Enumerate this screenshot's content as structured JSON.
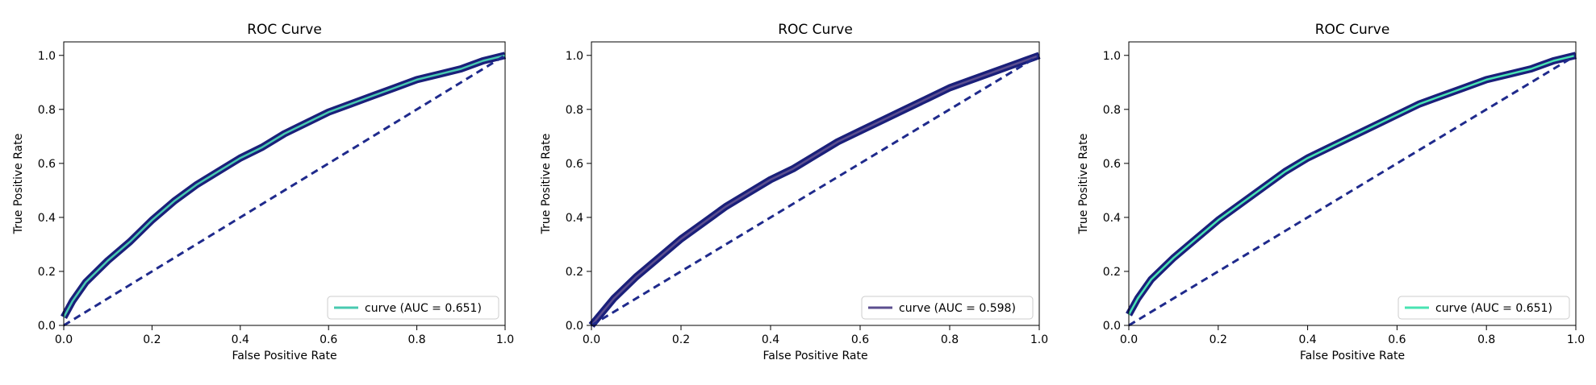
{
  "chart_data": [
    {
      "type": "line",
      "title": "ROC Curve",
      "xlabel": "False Positive Rate",
      "ylabel": "True Positive Rate",
      "xlim": [
        0,
        1
      ],
      "ylim": [
        0,
        1.05
      ],
      "xticks": [
        "0.0",
        "0.2",
        "0.4",
        "0.6",
        "0.8",
        "1.0"
      ],
      "yticks": [
        "0.0",
        "0.2",
        "0.4",
        "0.6",
        "0.8",
        "1.0"
      ],
      "grid": false,
      "legend_position": "lower-right",
      "series": [
        {
          "name": "curve (AUC = 0.651)",
          "color": "#48c9b0",
          "x": [
            0,
            0.02,
            0.05,
            0.1,
            0.15,
            0.2,
            0.25,
            0.3,
            0.35,
            0.4,
            0.45,
            0.5,
            0.55,
            0.6,
            0.65,
            0.7,
            0.75,
            0.8,
            0.85,
            0.9,
            0.95,
            1.0
          ],
          "y": [
            0.03,
            0.09,
            0.16,
            0.24,
            0.31,
            0.39,
            0.46,
            0.52,
            0.57,
            0.62,
            0.66,
            0.71,
            0.75,
            0.79,
            0.82,
            0.85,
            0.88,
            0.91,
            0.93,
            0.95,
            0.98,
            1.0
          ]
        },
        {
          "name": "",
          "color": "#1f2a8c",
          "dashed": true,
          "x": [
            0,
            1
          ],
          "y": [
            0,
            1
          ]
        }
      ]
    },
    {
      "type": "line",
      "title": "ROC Curve",
      "xlabel": "False Positive Rate",
      "ylabel": "True Positive Rate",
      "xlim": [
        0,
        1
      ],
      "ylim": [
        0,
        1.05
      ],
      "xticks": [
        "0.0",
        "0.2",
        "0.4",
        "0.6",
        "0.8",
        "1.0"
      ],
      "yticks": [
        "0.0",
        "0.2",
        "0.4",
        "0.6",
        "0.8",
        "1.0"
      ],
      "grid": false,
      "legend_position": "lower-right",
      "series": [
        {
          "name": "curve (AUC = 0.598)",
          "color": "#5b4e8f",
          "x": [
            0,
            0.02,
            0.05,
            0.1,
            0.15,
            0.2,
            0.25,
            0.3,
            0.35,
            0.4,
            0.45,
            0.5,
            0.55,
            0.6,
            0.65,
            0.7,
            0.75,
            0.8,
            0.85,
            0.9,
            0.95,
            1.0
          ],
          "y": [
            0.0,
            0.04,
            0.1,
            0.18,
            0.25,
            0.32,
            0.38,
            0.44,
            0.49,
            0.54,
            0.58,
            0.63,
            0.68,
            0.72,
            0.76,
            0.8,
            0.84,
            0.88,
            0.91,
            0.94,
            0.97,
            1.0
          ]
        },
        {
          "name": "",
          "color": "#1f2a8c",
          "dashed": true,
          "x": [
            0,
            1
          ],
          "y": [
            0,
            1
          ]
        }
      ]
    },
    {
      "type": "line",
      "title": "ROC Curve",
      "xlabel": "False Positive Rate",
      "ylabel": "True Positive Rate",
      "xlim": [
        0,
        1
      ],
      "ylim": [
        0,
        1.05
      ],
      "xticks": [
        "0.0",
        "0.2",
        "0.4",
        "0.6",
        "0.8",
        "1.0"
      ],
      "yticks": [
        "0.0",
        "0.2",
        "0.4",
        "0.6",
        "0.8",
        "1.0"
      ],
      "grid": false,
      "legend_position": "lower-right",
      "series": [
        {
          "name": "curve (AUC = 0.651)",
          "color": "#48e3b2",
          "x": [
            0,
            0.02,
            0.05,
            0.1,
            0.15,
            0.2,
            0.25,
            0.3,
            0.35,
            0.4,
            0.45,
            0.5,
            0.55,
            0.6,
            0.65,
            0.7,
            0.75,
            0.8,
            0.85,
            0.9,
            0.95,
            1.0
          ],
          "y": [
            0.04,
            0.1,
            0.17,
            0.25,
            0.32,
            0.39,
            0.45,
            0.51,
            0.57,
            0.62,
            0.66,
            0.7,
            0.74,
            0.78,
            0.82,
            0.85,
            0.88,
            0.91,
            0.93,
            0.95,
            0.98,
            1.0
          ]
        },
        {
          "name": "",
          "color": "#1f2a8c",
          "dashed": true,
          "x": [
            0,
            1
          ],
          "y": [
            0,
            1
          ]
        }
      ]
    }
  ]
}
